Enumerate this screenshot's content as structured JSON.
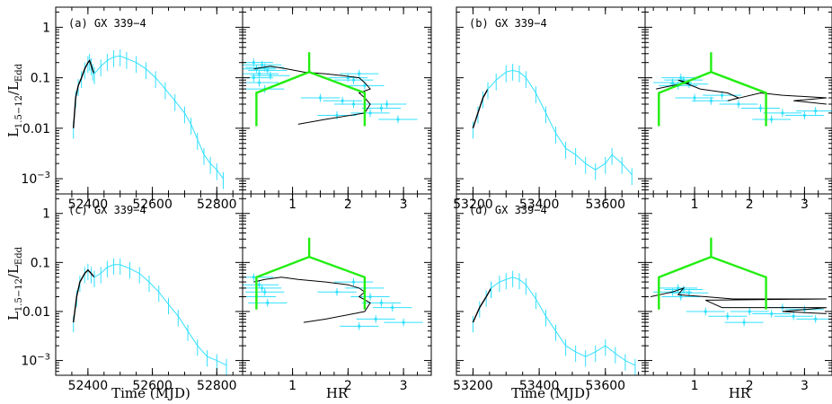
{
  "figure": {
    "ylabel_main": "L",
    "ylabel_sub": "1.5−12",
    "ylabel_slash": "/L",
    "ylabel_sub2": "Edd",
    "y_ticks": [
      "1",
      "0.1",
      "0.01",
      "10−3"
    ],
    "hr_ticks": [
      "1",
      "2",
      "3"
    ],
    "xlabel_time": "Time (MJD)",
    "xlabel_hr": "HR"
  },
  "colors": {
    "data": "#33e0ff",
    "track": "#000000",
    "box": "#22ee11"
  },
  "chart_data": [
    {
      "type": "line",
      "panel": "a-lightcurve",
      "title": "(a) GX 339−4",
      "xlabel": "",
      "ylabel": "L1.5−12/LEdd",
      "yscale": "log",
      "xlim": [
        52300,
        52880
      ],
      "ylim": [
        0.0005,
        2.5
      ],
      "xticks": [
        52400,
        52600,
        52800
      ],
      "series": [
        {
          "values": [
            [
              52355,
              0.01
            ],
            [
              52362,
              0.04
            ],
            [
              52370,
              0.07
            ],
            [
              52380,
              0.1
            ],
            [
              52390,
              0.15
            ],
            [
              52400,
              0.2
            ],
            [
              52405,
              0.22
            ],
            [
              52410,
              0.18
            ],
            [
              52415,
              0.14
            ],
            [
              52420,
              0.12
            ]
          ]
        },
        {
          "values": [
            [
              52420,
              0.12
            ],
            [
              52440,
              0.17
            ],
            [
              52460,
              0.22
            ],
            [
              52480,
              0.26
            ],
            [
              52500,
              0.27
            ],
            [
              52520,
              0.24
            ],
            [
              52550,
              0.2
            ],
            [
              52580,
              0.15
            ],
            [
              52610,
              0.1
            ],
            [
              52640,
              0.06
            ],
            [
              52670,
              0.035
            ],
            [
              52700,
              0.02
            ],
            [
              52720,
              0.012
            ],
            [
              52740,
              0.006
            ],
            [
              52760,
              0.003
            ],
            [
              52780,
              0.002
            ],
            [
              52800,
              0.0015
            ],
            [
              52820,
              0.001
            ]
          ]
        }
      ]
    },
    {
      "type": "scatter",
      "panel": "a-hid",
      "xlabel": "",
      "yscale": "log",
      "xlim": [
        0.1,
        3.5
      ],
      "ylim": [
        0.0005,
        2.5
      ],
      "xticks": [
        1,
        2,
        3
      ],
      "track": [
        [
          0.3,
          0.15
        ],
        [
          0.6,
          0.17
        ],
        [
          0.9,
          0.15
        ],
        [
          1.2,
          0.13
        ],
        [
          1.6,
          0.12
        ],
        [
          1.9,
          0.11
        ],
        [
          2.2,
          0.1
        ],
        [
          2.3,
          0.08
        ],
        [
          2.4,
          0.06
        ],
        [
          2.2,
          0.05
        ],
        [
          2.3,
          0.04
        ],
        [
          2.4,
          0.03
        ],
        [
          2.3,
          0.02
        ],
        [
          1.6,
          0.015
        ],
        [
          1.1,
          0.012
        ]
      ],
      "points": [
        [
          0.3,
          0.2
        ],
        [
          0.35,
          0.15
        ],
        [
          0.4,
          0.12
        ],
        [
          0.45,
          0.18
        ],
        [
          0.5,
          0.16
        ],
        [
          0.55,
          0.14
        ],
        [
          0.3,
          0.1
        ],
        [
          0.4,
          0.08
        ],
        [
          0.5,
          0.06
        ],
        [
          0.6,
          0.11
        ],
        [
          2.0,
          0.1
        ],
        [
          2.1,
          0.09
        ],
        [
          2.2,
          0.12
        ],
        [
          2.3,
          0.07
        ],
        [
          1.5,
          0.04
        ],
        [
          1.9,
          0.035
        ],
        [
          2.1,
          0.03
        ],
        [
          2.6,
          0.025
        ],
        [
          2.4,
          0.02
        ],
        [
          1.8,
          0.018
        ],
        [
          2.9,
          0.015
        ],
        [
          2.7,
          0.03
        ]
      ]
    },
    {
      "type": "line",
      "panel": "b-lightcurve",
      "title": "(b) GX 339−4",
      "xlabel": "",
      "yscale": "log",
      "xlim": [
        53150,
        53720
      ],
      "ylim": [
        0.0005,
        2.5
      ],
      "xticks": [
        53200,
        53400,
        53600
      ],
      "series": [
        {
          "values": [
            [
              53200,
              0.01
            ],
            [
              53215,
              0.02
            ],
            [
              53230,
              0.04
            ],
            [
              53245,
              0.06
            ]
          ]
        },
        {
          "values": [
            [
              53245,
              0.06
            ],
            [
              53270,
              0.09
            ],
            [
              53300,
              0.13
            ],
            [
              53320,
              0.14
            ],
            [
              53340,
              0.13
            ],
            [
              53360,
              0.1
            ],
            [
              53390,
              0.05
            ],
            [
              53420,
              0.02
            ],
            [
              53450,
              0.008
            ],
            [
              53480,
              0.004
            ],
            [
              53510,
              0.003
            ],
            [
              53540,
              0.002
            ],
            [
              53570,
              0.0015
            ],
            [
              53600,
              0.002
            ],
            [
              53620,
              0.003
            ],
            [
              53650,
              0.002
            ],
            [
              53680,
              0.0012
            ]
          ]
        }
      ]
    },
    {
      "type": "scatter",
      "panel": "b-hid",
      "xlabel": "",
      "yscale": "log",
      "xlim": [
        0.1,
        3.5
      ],
      "ylim": [
        0.0005,
        2.5
      ],
      "xticks": [
        1,
        2,
        3
      ],
      "track": [
        [
          0.3,
          0.06
        ],
        [
          0.6,
          0.07
        ],
        [
          0.9,
          0.08
        ],
        [
          0.7,
          0.09
        ],
        [
          1.1,
          0.06
        ],
        [
          1.6,
          0.05
        ],
        [
          1.8,
          0.04
        ],
        [
          1.6,
          0.035
        ],
        [
          2.2,
          0.05
        ],
        [
          2.6,
          0.045
        ],
        [
          3.4,
          0.04
        ],
        [
          2.8,
          0.035
        ],
        [
          3.4,
          0.03
        ]
      ],
      "points": [
        [
          0.6,
          0.08
        ],
        [
          0.7,
          0.07
        ],
        [
          0.8,
          0.09
        ],
        [
          0.9,
          0.075
        ],
        [
          0.75,
          0.1
        ],
        [
          1.0,
          0.04
        ],
        [
          1.3,
          0.035
        ],
        [
          1.8,
          0.03
        ],
        [
          2.2,
          0.025
        ],
        [
          2.6,
          0.02
        ],
        [
          3.0,
          0.018
        ],
        [
          2.4,
          0.015
        ],
        [
          3.2,
          0.022
        ],
        [
          1.5,
          0.045
        ]
      ]
    },
    {
      "type": "line",
      "panel": "c-lightcurve",
      "title": "(c) GX 339−4",
      "xlabel": "Time (MJD)",
      "ylabel": "L1.5−12/LEdd",
      "yscale": "log",
      "xlim": [
        52300,
        52880
      ],
      "ylim": [
        0.0005,
        2.5
      ],
      "xticks": [
        52400,
        52600,
        52800
      ],
      "series": [
        {
          "values": [
            [
              52355,
              0.006
            ],
            [
              52365,
              0.02
            ],
            [
              52375,
              0.04
            ],
            [
              52390,
              0.06
            ],
            [
              52400,
              0.07
            ],
            [
              52410,
              0.06
            ],
            [
              52420,
              0.05
            ]
          ]
        },
        {
          "values": [
            [
              52420,
              0.05
            ],
            [
              52440,
              0.06
            ],
            [
              52460,
              0.08
            ],
            [
              52480,
              0.09
            ],
            [
              52500,
              0.09
            ],
            [
              52530,
              0.075
            ],
            [
              52560,
              0.06
            ],
            [
              52590,
              0.04
            ],
            [
              52620,
              0.025
            ],
            [
              52650,
              0.014
            ],
            [
              52680,
              0.008
            ],
            [
              52710,
              0.004
            ],
            [
              52740,
              0.002
            ],
            [
              52770,
              0.0012
            ],
            [
              52800,
              0.001
            ],
            [
              52830,
              0.0008
            ]
          ]
        }
      ]
    },
    {
      "type": "scatter",
      "panel": "c-hid",
      "xlabel": "HR",
      "yscale": "log",
      "xlim": [
        0.1,
        3.5
      ],
      "ylim": [
        0.0005,
        2.5
      ],
      "xticks": [
        1,
        2,
        3
      ],
      "track": [
        [
          0.3,
          0.04
        ],
        [
          0.5,
          0.045
        ],
        [
          0.8,
          0.05
        ],
        [
          1.1,
          0.045
        ],
        [
          1.6,
          0.04
        ],
        [
          2.0,
          0.035
        ],
        [
          2.2,
          0.03
        ],
        [
          2.3,
          0.025
        ],
        [
          2.2,
          0.02
        ],
        [
          2.4,
          0.015
        ],
        [
          2.3,
          0.01
        ],
        [
          1.6,
          0.007
        ],
        [
          1.2,
          0.006
        ]
      ],
      "points": [
        [
          0.3,
          0.05
        ],
        [
          0.4,
          0.035
        ],
        [
          0.45,
          0.03
        ],
        [
          0.5,
          0.025
        ],
        [
          0.35,
          0.02
        ],
        [
          0.55,
          0.015
        ],
        [
          2.1,
          0.04
        ],
        [
          2.3,
          0.03
        ],
        [
          2.4,
          0.02
        ],
        [
          1.8,
          0.025
        ],
        [
          2.6,
          0.015
        ],
        [
          2.8,
          0.012
        ],
        [
          2.5,
          0.007
        ],
        [
          2.2,
          0.005
        ],
        [
          3.0,
          0.006
        ]
      ]
    },
    {
      "type": "line",
      "panel": "d-lightcurve",
      "title": "(d) GX 339−4",
      "xlabel": "Time (MJD)",
      "yscale": "log",
      "xlim": [
        53150,
        53720
      ],
      "ylim": [
        0.0005,
        2.5
      ],
      "xticks": [
        53200,
        53400,
        53600
      ],
      "series": [
        {
          "values": [
            [
              53200,
              0.006
            ],
            [
              53220,
              0.012
            ],
            [
              53240,
              0.02
            ],
            [
              53255,
              0.03
            ]
          ]
        },
        {
          "values": [
            [
              53255,
              0.03
            ],
            [
              53280,
              0.04
            ],
            [
              53300,
              0.045
            ],
            [
              53320,
              0.05
            ],
            [
              53340,
              0.045
            ],
            [
              53360,
              0.035
            ],
            [
              53390,
              0.018
            ],
            [
              53420,
              0.008
            ],
            [
              53450,
              0.004
            ],
            [
              53480,
              0.002
            ],
            [
              53510,
              0.0015
            ],
            [
              53540,
              0.0012
            ],
            [
              53570,
              0.0015
            ],
            [
              53600,
              0.002
            ],
            [
              53630,
              0.0014
            ],
            [
              53660,
              0.001
            ],
            [
              53690,
              0.0008
            ]
          ]
        }
      ]
    },
    {
      "type": "scatter",
      "panel": "d-hid",
      "xlabel": "HR",
      "yscale": "log",
      "xlim": [
        0.1,
        3.5
      ],
      "ylim": [
        0.0005,
        2.5
      ],
      "xticks": [
        1,
        2,
        3
      ],
      "track": [
        [
          0.2,
          0.02
        ],
        [
          0.6,
          0.025
        ],
        [
          0.8,
          0.03
        ],
        [
          0.7,
          0.022
        ],
        [
          1.2,
          0.02
        ],
        [
          1.7,
          0.018
        ],
        [
          3.4,
          0.018
        ],
        [
          1.2,
          0.017
        ],
        [
          1.5,
          0.012
        ],
        [
          2.2,
          0.012
        ],
        [
          3.4,
          0.012
        ],
        [
          2.6,
          0.01
        ],
        [
          3.4,
          0.009
        ]
      ],
      "points": [
        [
          0.6,
          0.025
        ],
        [
          0.7,
          0.03
        ],
        [
          0.8,
          0.028
        ],
        [
          0.9,
          0.024
        ],
        [
          0.75,
          0.02
        ],
        [
          1.2,
          0.01
        ],
        [
          1.6,
          0.008
        ],
        [
          2.0,
          0.01
        ],
        [
          2.4,
          0.009
        ],
        [
          2.8,
          0.008
        ],
        [
          3.2,
          0.007
        ],
        [
          1.9,
          0.006
        ],
        [
          2.6,
          0.012
        ],
        [
          3.0,
          0.011
        ]
      ]
    }
  ]
}
